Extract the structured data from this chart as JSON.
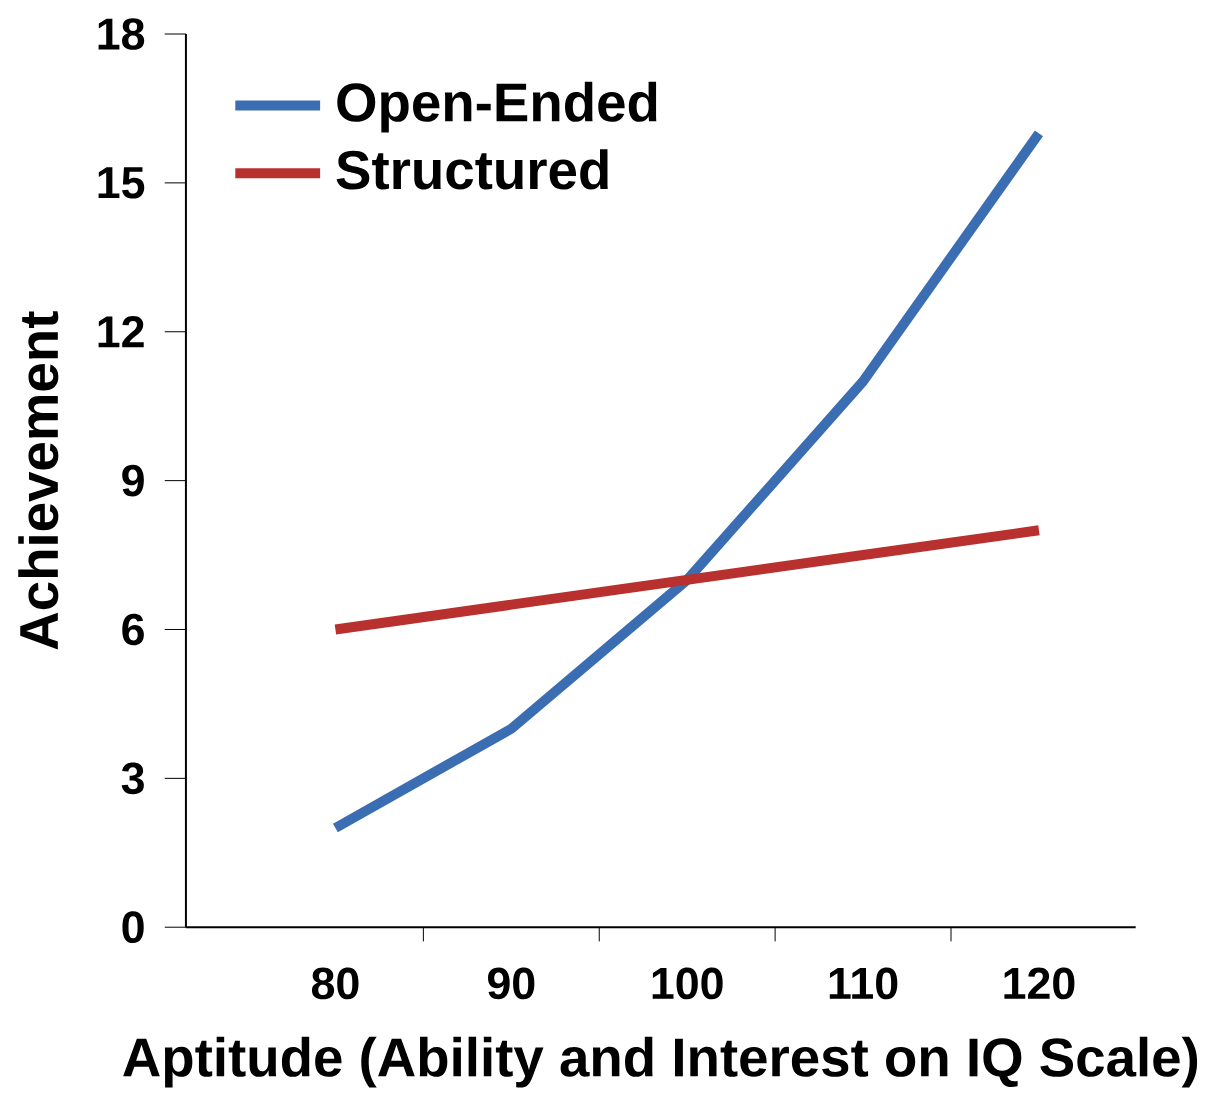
{
  "chart_data": {
    "type": "line",
    "xlabel": "Aptitude (Ability and Interest on IQ Scale)",
    "ylabel": "Achievement",
    "categories": [
      "80",
      "90",
      "100",
      "110",
      "120"
    ],
    "series": [
      {
        "name": "Open-Ended",
        "color": "#3b6db3",
        "values": [
          2,
          4,
          7,
          11,
          16
        ]
      },
      {
        "name": "Structured",
        "color": "#b8312f",
        "values": [
          6,
          6.5,
          7,
          7.5,
          8
        ]
      }
    ],
    "ylim": [
      0,
      18
    ],
    "yticks": [
      0,
      3,
      6,
      9,
      12,
      15,
      18
    ],
    "grid": false,
    "legend": "top left",
    "marker": "none",
    "line_style": "solid"
  }
}
